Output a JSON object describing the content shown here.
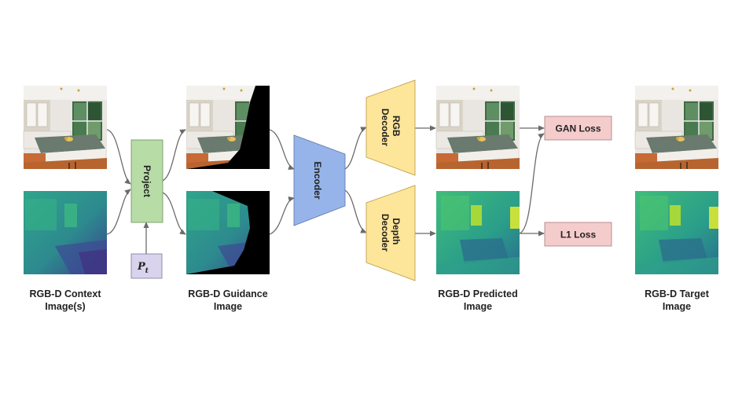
{
  "captions": {
    "context": [
      "RGB-D Context",
      "Image(s)"
    ],
    "guidance": [
      "RGB-D Guidance",
      "Image"
    ],
    "predicted": [
      "RGB-D Predicted",
      "Image"
    ],
    "target": [
      "RGB-D Target",
      "Image"
    ]
  },
  "blocks": {
    "project": "Project",
    "pose_var": "P",
    "pose_sub": "t",
    "encoder": "Encoder",
    "rgb_decoder": [
      "RGB",
      "Decoder"
    ],
    "depth_decoder": [
      "Depth",
      "Decoder"
    ],
    "gan_loss": "GAN Loss",
    "l1_loss": "L1 Loss"
  },
  "colors": {
    "project_fill": "#b7dca6",
    "pose_fill": "#d9d3ee",
    "encoder_fill": "#97b4ea",
    "decoder_fill": "#fde59a",
    "loss_fill": "#f5cccc",
    "arrow": "#6b6b6b"
  },
  "images": {
    "context_rgb": "kitchen-photo",
    "context_depth": "depth-map",
    "guidance_rgb": "warped-kitchen-photo",
    "guidance_depth": "warped-depth-map",
    "predicted_rgb": "predicted-kitchen-photo",
    "predicted_depth": "predicted-depth-map",
    "target_rgb": "target-kitchen-photo",
    "target_depth": "target-depth-map"
  }
}
